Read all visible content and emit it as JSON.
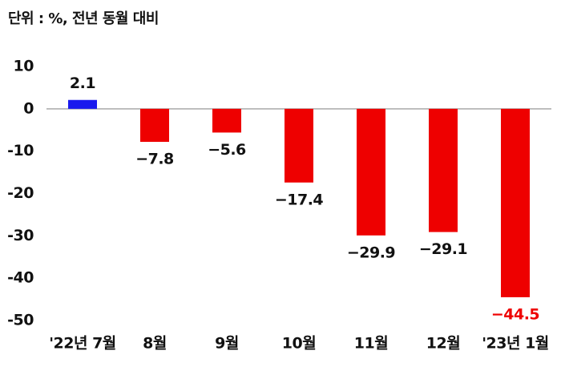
{
  "chart_data": {
    "type": "bar",
    "title": "단위 : %, 전년 동월 대비",
    "categories": [
      "'22년 7월",
      "8월",
      "9월",
      "10월",
      "11월",
      "12월",
      "'23년 1월"
    ],
    "values": [
      2.1,
      -7.8,
      -5.6,
      -17.4,
      -29.9,
      -29.1,
      -44.5
    ],
    "value_labels": [
      "2.1",
      "−7.8",
      "−5.6",
      "−17.4",
      "−29.9",
      "−29.1",
      "−44.5"
    ],
    "colors": [
      "#1a1aee",
      "#ee0000",
      "#ee0000",
      "#ee0000",
      "#ee0000",
      "#ee0000",
      "#ee0000"
    ],
    "label_colors": [
      "#111111",
      "#111111",
      "#111111",
      "#111111",
      "#111111",
      "#111111",
      "#ee0000"
    ],
    "ylim": [
      -50,
      10
    ],
    "yticks": [
      10,
      0,
      -10,
      -20,
      -30,
      -40,
      -50
    ],
    "grid": false
  }
}
